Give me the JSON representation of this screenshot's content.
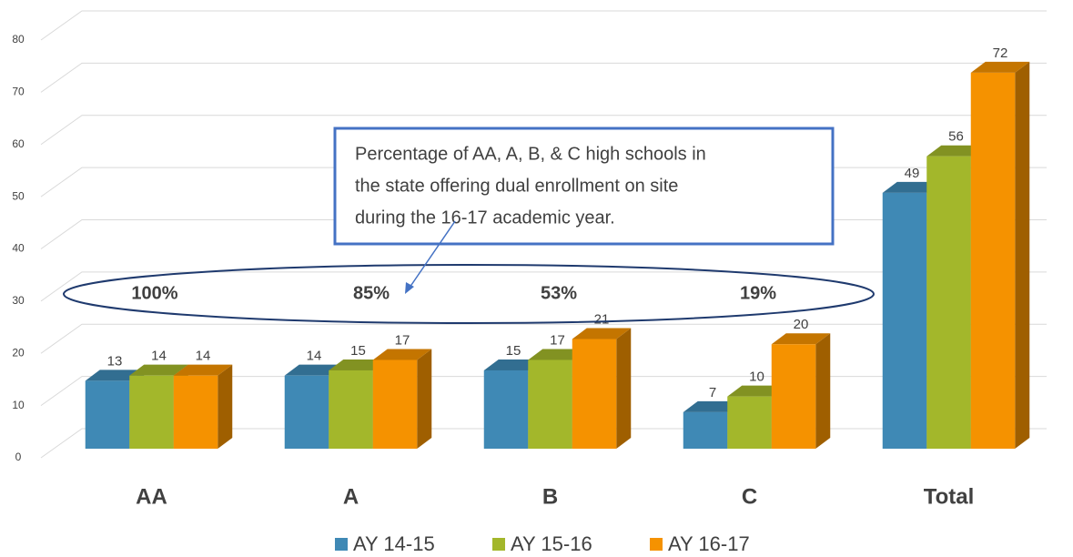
{
  "chart_data": {
    "type": "bar3d",
    "categories": [
      "AA",
      "A",
      "B",
      "C",
      "Total"
    ],
    "series": [
      {
        "name": "AY 14-15",
        "color": "#3f89b5",
        "values": [
          13,
          14,
          15,
          7,
          49
        ]
      },
      {
        "name": "AY 15-16",
        "color": "#a3b72b",
        "values": [
          14,
          15,
          17,
          10,
          56
        ]
      },
      {
        "name": "AY 16-17",
        "color": "#f59200",
        "values": [
          14,
          17,
          21,
          20,
          72
        ]
      }
    ],
    "ylim": [
      0,
      80
    ],
    "yticks": [
      0,
      10,
      20,
      30,
      40,
      50,
      60,
      70,
      80
    ],
    "grid": true,
    "annotation": [
      "Percentage of AA, A, B, & C high schools in",
      "the state offering dual enrollment on site",
      "during the 16-17 academic year."
    ],
    "ellipse_labels": [
      "100%",
      "85%",
      "53%",
      "19%"
    ],
    "legend": "bottom"
  }
}
